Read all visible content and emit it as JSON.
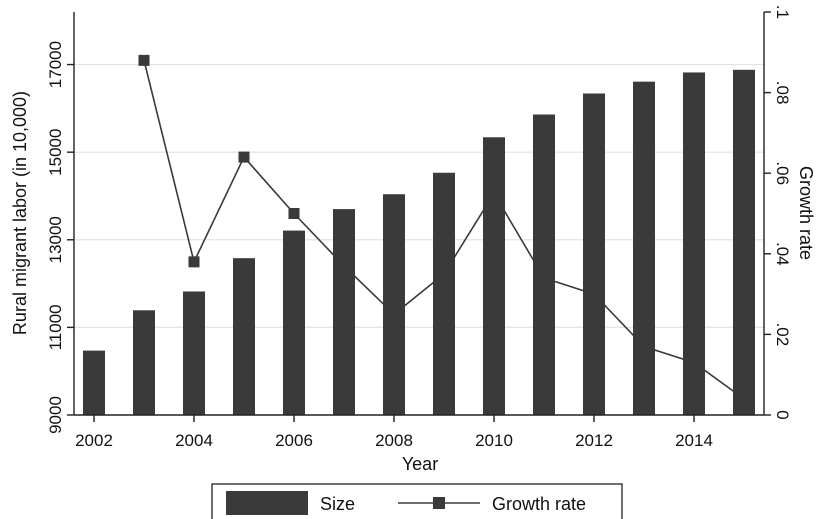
{
  "chart_data": {
    "type": "bar",
    "title": "",
    "xlabel": "Year",
    "ylabel": "Rural migrant labor (in 10,000)",
    "y2label": "Growth rate",
    "years": [
      2002,
      2003,
      2004,
      2005,
      2006,
      2007,
      2008,
      2009,
      2010,
      2011,
      2012,
      2013,
      2014,
      2015
    ],
    "x_ticks": [
      "2002",
      "2004",
      "2006",
      "2008",
      "2010",
      "2012",
      "2014"
    ],
    "x_tick_values": [
      2002,
      2004,
      2006,
      2008,
      2010,
      2012,
      2014
    ],
    "xlim": [
      2001.6,
      2015.4
    ],
    "ylim": [
      9000,
      18200
    ],
    "y_ticks": [
      "9000",
      "11000",
      "13000",
      "15000",
      "17000"
    ],
    "y_tick_values": [
      9000,
      11000,
      13000,
      15000,
      17000
    ],
    "y2lim": [
      0,
      0.1
    ],
    "y2_ticks": [
      "0",
      ".02",
      ".04",
      ".06",
      ".08",
      ".1"
    ],
    "y2_tick_values": [
      0,
      0.02,
      0.04,
      0.06,
      0.08,
      0.1
    ],
    "grid": true,
    "legend_position": "bottom",
    "series": [
      {
        "name": "Size",
        "type": "bar",
        "axis": "left",
        "color": "#3a3a3a",
        "values": [
          10470,
          11390,
          11820,
          12580,
          13210,
          13700,
          14040,
          14530,
          15340,
          15860,
          16340,
          16610,
          16820,
          16880
        ]
      },
      {
        "name": "Growth rate",
        "type": "line",
        "axis": "right",
        "color": "#3a3a3a",
        "x": [
          2003,
          2004,
          2005,
          2006,
          2007,
          2008,
          2009,
          2010,
          2011,
          2012,
          2013,
          2014,
          2015
        ],
        "values": [
          0.088,
          0.038,
          0.064,
          0.05,
          0.037,
          0.025,
          0.035,
          0.055,
          0.034,
          0.03,
          0.017,
          0.013,
          0.004
        ]
      }
    ]
  }
}
